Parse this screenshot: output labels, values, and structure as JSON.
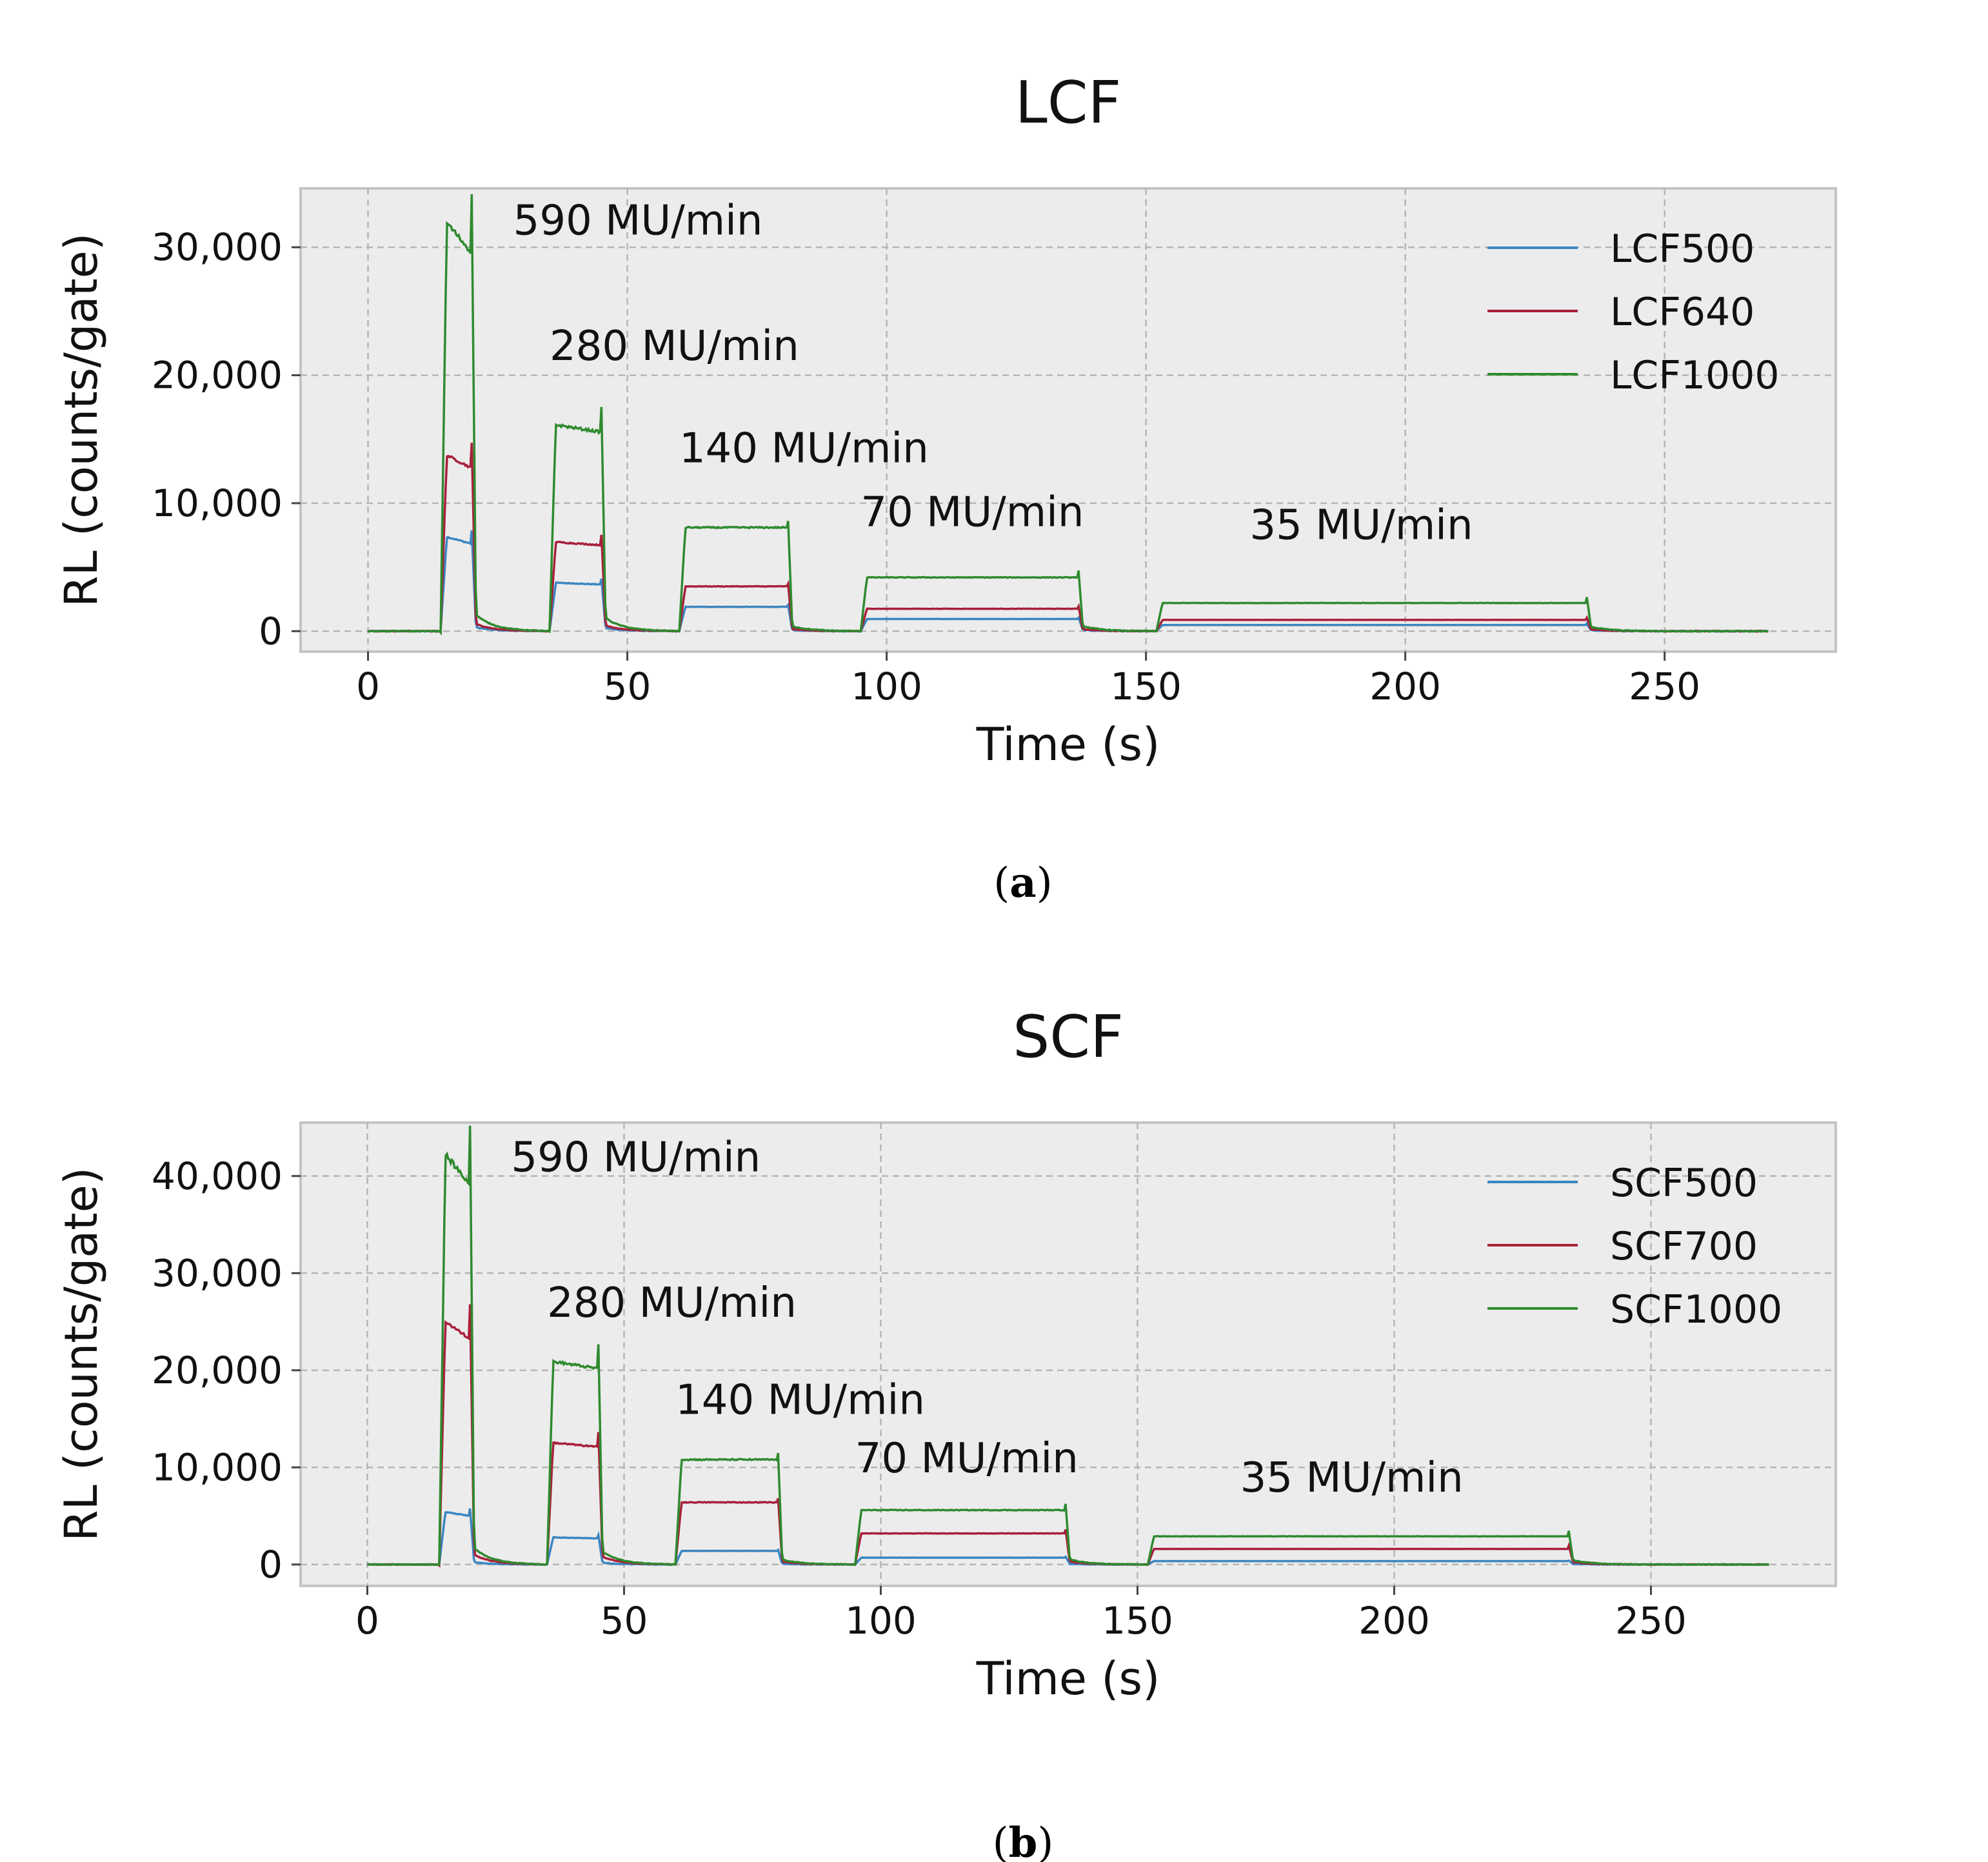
{
  "colors": {
    "blue": "#3a86c1",
    "red": "#a8203a",
    "green": "#2f8a2f",
    "plot_bg": "#ececec",
    "grid": "#b5b5b5"
  },
  "chart_data": [
    {
      "type": "line",
      "title": "LCF",
      "caption": [
        "(",
        "a",
        ")"
      ],
      "xlabel": "Time (s)",
      "ylabel": "RL (counts/gate)",
      "xlim": [
        -13,
        283
      ],
      "ylim": [
        -1600,
        34600
      ],
      "xticks": [
        0,
        50,
        100,
        150,
        200,
        250
      ],
      "yticks": [
        0,
        10000,
        20000,
        30000
      ],
      "ytick_labels": [
        "0",
        "10,000",
        "20,000",
        "30,000"
      ],
      "grid": true,
      "legend_position": "top-right",
      "x_end": 270,
      "tail_scale": [
        0.05,
        0.08,
        0.06,
        0.12,
        0.2
      ],
      "segments": [
        [
          0,
          14
        ],
        [
          14,
          20
        ],
        [
          20,
          35
        ],
        [
          35,
          45
        ],
        [
          45,
          60
        ],
        [
          60,
          81
        ],
        [
          81,
          95
        ],
        [
          95,
          137
        ],
        [
          137,
          152
        ],
        [
          152,
          235
        ],
        [
          235,
          270
        ]
      ],
      "pulses": [
        {
          "start": 14,
          "end": 20,
          "label": "590 MU/min",
          "label_x": 28,
          "label_y": 31000
        },
        {
          "start": 35,
          "end": 45,
          "label": "280 MU/min",
          "label_x": 35,
          "label_y": 21200
        },
        {
          "start": 60,
          "end": 81,
          "label": "140 MU/min",
          "label_x": 60,
          "label_y": 13200
        },
        {
          "start": 95,
          "end": 137,
          "label": "70 MU/min",
          "label_x": 95,
          "label_y": 8200
        },
        {
          "start": 152,
          "end": 235,
          "label": "35 MU/min",
          "label_x": 170,
          "label_y": 7200
        }
      ],
      "series": [
        {
          "name": "LCF500",
          "color": "#3a86c1",
          "baseline": 0,
          "levels": [
            7500,
            3800,
            1900,
            950,
            480
          ]
        },
        {
          "name": "LCF640",
          "color": "#a8203a",
          "baseline": 0,
          "levels": [
            14000,
            7000,
            3500,
            1750,
            880
          ]
        },
        {
          "name": "LCF1000",
          "color": "#2f8a2f",
          "baseline": 0,
          "levels": [
            32500,
            16200,
            8100,
            4200,
            2200
          ]
        }
      ]
    },
    {
      "type": "line",
      "title": "SCF",
      "caption": [
        "(",
        "b",
        ")"
      ],
      "xlabel": "Time (s)",
      "ylabel": "RL (counts/gate)",
      "xlim": [
        -13,
        286
      ],
      "ylim": [
        -2200,
        45500
      ],
      "xticks": [
        0,
        50,
        100,
        150,
        200,
        250
      ],
      "yticks": [
        0,
        10000,
        20000,
        30000,
        40000
      ],
      "ytick_labels": [
        "0",
        "10,000",
        "20,000",
        "30,000",
        "40,000"
      ],
      "grid": true,
      "legend_position": "top-right",
      "x_end": 273,
      "tail_scale": [
        0.05,
        0.08,
        0.06,
        0.12,
        0.2
      ],
      "segments": [
        [
          0,
          14
        ],
        [
          14,
          20
        ],
        [
          20,
          35
        ],
        [
          35,
          45
        ],
        [
          45,
          60
        ],
        [
          60,
          80
        ],
        [
          80,
          95
        ],
        [
          95,
          136
        ],
        [
          136,
          152
        ],
        [
          152,
          234
        ],
        [
          234,
          273
        ]
      ],
      "pulses": [
        {
          "start": 14,
          "end": 20,
          "label": "590 MU/min",
          "label_x": 28,
          "label_y": 40500
        },
        {
          "start": 35,
          "end": 45,
          "label": "280 MU/min",
          "label_x": 35,
          "label_y": 25500
        },
        {
          "start": 60,
          "end": 80,
          "label": "140 MU/min",
          "label_x": 60,
          "label_y": 15500
        },
        {
          "start": 95,
          "end": 136,
          "label": "70 MU/min",
          "label_x": 95,
          "label_y": 9500
        },
        {
          "start": 152,
          "end": 234,
          "label": "35 MU/min",
          "label_x": 170,
          "label_y": 7500
        }
      ],
      "series": [
        {
          "name": "SCF500",
          "color": "#3a86c1",
          "baseline": 0,
          "levels": [
            5500,
            2800,
            1400,
            700,
            350
          ]
        },
        {
          "name": "SCF700",
          "color": "#a8203a",
          "baseline": 0,
          "levels": [
            25500,
            12600,
            6400,
            3200,
            1600
          ]
        },
        {
          "name": "SCF1000",
          "color": "#2f8a2f",
          "baseline": 0,
          "levels": [
            43000,
            21000,
            10800,
            5600,
            2900
          ]
        }
      ]
    }
  ]
}
